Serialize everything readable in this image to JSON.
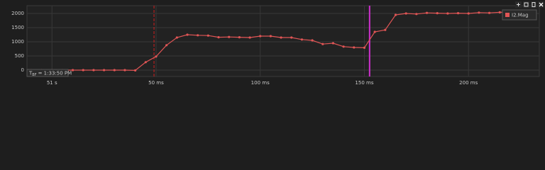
{
  "chart_data": {
    "type": "line",
    "x": [
      -10,
      -5,
      0,
      5,
      10,
      15,
      20,
      25,
      30,
      35,
      40,
      45,
      50,
      55,
      60,
      65,
      70,
      75,
      80,
      85,
      90,
      95,
      100,
      105,
      110,
      115,
      120,
      125,
      130,
      135,
      140,
      145,
      150,
      155,
      160,
      165,
      170,
      175,
      180,
      185,
      190,
      195,
      200,
      205,
      210,
      215,
      220,
      225,
      230
    ],
    "series": [
      {
        "name": "I2.Mag",
        "color": "#e05555",
        "values": [
          0,
          0,
          0,
          0,
          0,
          0,
          0,
          0,
          0,
          0,
          -10,
          280,
          480,
          880,
          1150,
          1250,
          1230,
          1220,
          1160,
          1170,
          1160,
          1150,
          1200,
          1200,
          1150,
          1150,
          1080,
          1050,
          920,
          950,
          830,
          800,
          790,
          1350,
          1420,
          1950,
          2000,
          1980,
          2020,
          2010,
          2000,
          2010,
          2000,
          2030,
          2020,
          2040,
          2050,
          2040,
          2040
        ]
      }
    ],
    "xlim": [
      -12,
      234
    ],
    "ylim": [
      -225,
      2275
    ],
    "xticks": [
      {
        "value": 0,
        "label": "51 s"
      },
      {
        "value": 50,
        "label": "50 ms"
      },
      {
        "value": 100,
        "label": "100 ms"
      },
      {
        "value": 150,
        "label": "150 ms"
      },
      {
        "value": 200,
        "label": "200 ms"
      }
    ],
    "yticks": [
      0,
      500,
      1000,
      1500,
      2000
    ],
    "grid": true,
    "legend": "top-right",
    "markers": [
      {
        "x": 49,
        "color": "#d02020",
        "style": "dashed"
      },
      {
        "x": 152.5,
        "color": "#d030d0",
        "style": "solid"
      }
    ],
    "annotation": {
      "main": "T",
      "sub": "BF",
      "rest": "= 1:33:50 PM"
    }
  }
}
